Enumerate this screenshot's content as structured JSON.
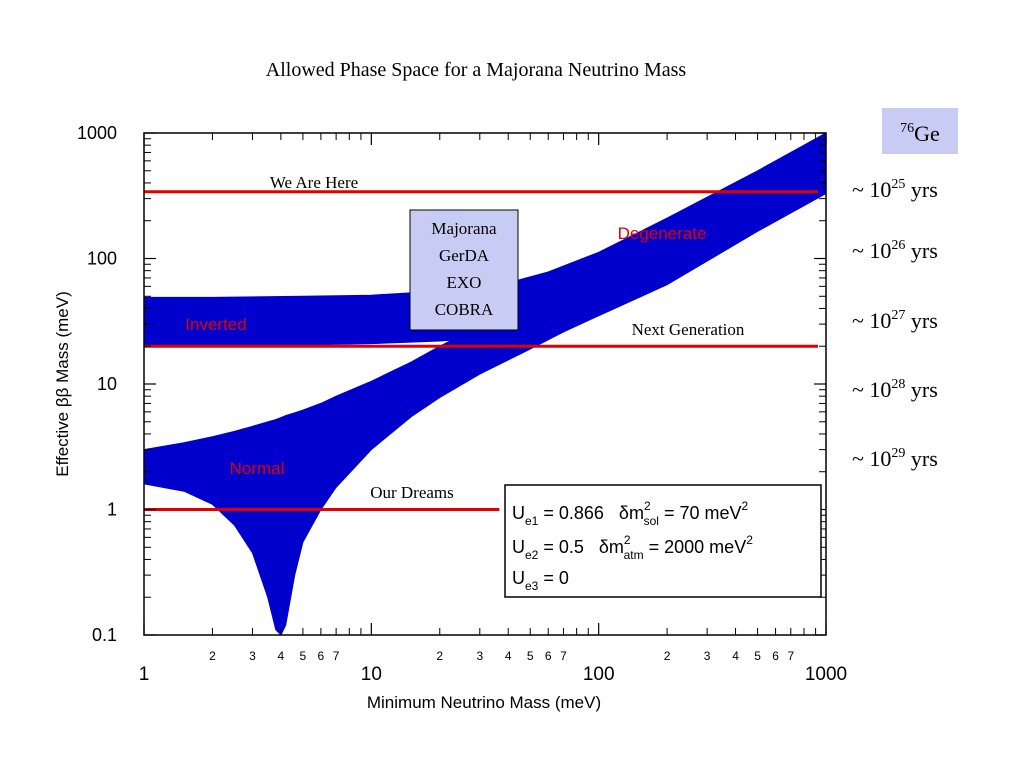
{
  "chart_data": {
    "type": "area",
    "title": "Allowed Phase Space for a Majorana Neutrino Mass",
    "xlabel": "Minimum Neutrino Mass (meV)",
    "ylabel": "Effective ββ Mass (meV)",
    "x_scale": "log",
    "y_scale": "log",
    "xlim": [
      1,
      1000
    ],
    "ylim": [
      0.1,
      1000
    ],
    "x_major_ticks": [
      1,
      10,
      100,
      1000
    ],
    "x_major_tick_labels": [
      "1",
      "10",
      "100",
      "1000"
    ],
    "x_minor_ticks": [
      2,
      3,
      4,
      5,
      6,
      7,
      20,
      30,
      40,
      50,
      60,
      70,
      200,
      300,
      400,
      500,
      600,
      700
    ],
    "x_minor_tick_labels": [
      "2",
      "3",
      "4",
      "5",
      "6",
      "7",
      "2",
      "3",
      "4",
      "5",
      "6",
      "7",
      "2",
      "3",
      "4",
      "5",
      "6",
      "7"
    ],
    "y_major_ticks": [
      0.1,
      1,
      10,
      100,
      1000
    ],
    "y_major_tick_labels": [
      "0.1",
      "1",
      "10",
      "100",
      "1000"
    ],
    "grid": false,
    "series": [
      {
        "name": "Inverted",
        "color": "#0000cc",
        "x": [
          1,
          2,
          5,
          10,
          20,
          40,
          60,
          100,
          200,
          500,
          1000
        ],
        "y_low": [
          20,
          20,
          20.5,
          21,
          22,
          24,
          27,
          35,
          62,
          165,
          330
        ],
        "y_high": [
          49,
          49,
          50,
          51,
          55,
          64,
          78,
          112,
          210,
          500,
          1000
        ]
      },
      {
        "name": "Normal",
        "color": "#0000cc",
        "x": [
          1,
          1.5,
          2,
          2.5,
          3,
          3.5,
          3.8,
          4,
          4.2,
          4.6,
          5,
          6,
          7,
          10,
          15,
          20,
          30,
          50,
          70,
          100,
          200,
          500,
          1000
        ],
        "y_low": [
          1.6,
          1.4,
          1.1,
          0.75,
          0.45,
          0.2,
          0.11,
          0.1,
          0.12,
          0.3,
          0.55,
          1.0,
          1.5,
          3.0,
          5.5,
          7.8,
          12,
          19,
          26,
          35,
          62,
          165,
          330
        ],
        "y_high": [
          3.0,
          3.4,
          3.8,
          4.2,
          4.6,
          5.0,
          5.2,
          5.4,
          5.6,
          5.9,
          6.2,
          7.0,
          8.0,
          10.5,
          15,
          20,
          29,
          48,
          66,
          94,
          190,
          480,
          1000
        ]
      },
      {
        "name": "Degenerate",
        "color": "#0000cc"
      }
    ],
    "reference_lines": [
      {
        "label": "We Are Here",
        "y": 340,
        "x_start": 1,
        "x_end": 1000,
        "color": "#e00000"
      },
      {
        "label": "Next Generation",
        "y": 20,
        "x_start": 1,
        "x_end": 1000,
        "color": "#e00000"
      },
      {
        "label": "Our Dreams",
        "y": 1,
        "x_start": 1,
        "x_end": 10,
        "color": "#e00000"
      }
    ],
    "region_labels": [
      "Inverted",
      "Degenerate",
      "Normal"
    ],
    "experiments_box": {
      "lines": [
        "Majorana",
        "GerDA",
        "EXO",
        "COBRA"
      ],
      "background": "#c8ccf4"
    },
    "parameters_box": {
      "rows": [
        [
          {
            "text": "U",
            "sub": "e1"
          },
          {
            "text": " = 0.866   "
          },
          {
            "text": "δm",
            "sup": "2",
            "sub": "sol"
          },
          {
            "text": " = 70 meV",
            "sup": "2"
          }
        ],
        [
          {
            "text": "U",
            "sub": "e2"
          },
          {
            "text": " = 0.5   "
          },
          {
            "text": "δm",
            "sup": "2",
            "sub": "atm"
          },
          {
            "text": " = 2000 meV",
            "sup": "2"
          }
        ],
        [
          {
            "text": "U",
            "sub": "e3"
          },
          {
            "text": " = 0"
          }
        ]
      ]
    },
    "isotope": {
      "mass_number": "76",
      "element": "Ge",
      "background": "#c8ccf4"
    },
    "half_lives": [
      {
        "prefix": "~ 10",
        "exponent": "25",
        "suffix": " yrs"
      },
      {
        "prefix": "~ 10",
        "exponent": "26",
        "suffix": " yrs"
      },
      {
        "prefix": "~ 10",
        "exponent": "27",
        "suffix": " yrs"
      },
      {
        "prefix": "~ 10",
        "exponent": "28",
        "suffix": " yrs"
      },
      {
        "prefix": "~ 10",
        "exponent": "29",
        "suffix": " yrs"
      }
    ],
    "colors": {
      "band": "#0000cc",
      "reference_line": "#e00000",
      "region_label": "#e00000"
    }
  }
}
